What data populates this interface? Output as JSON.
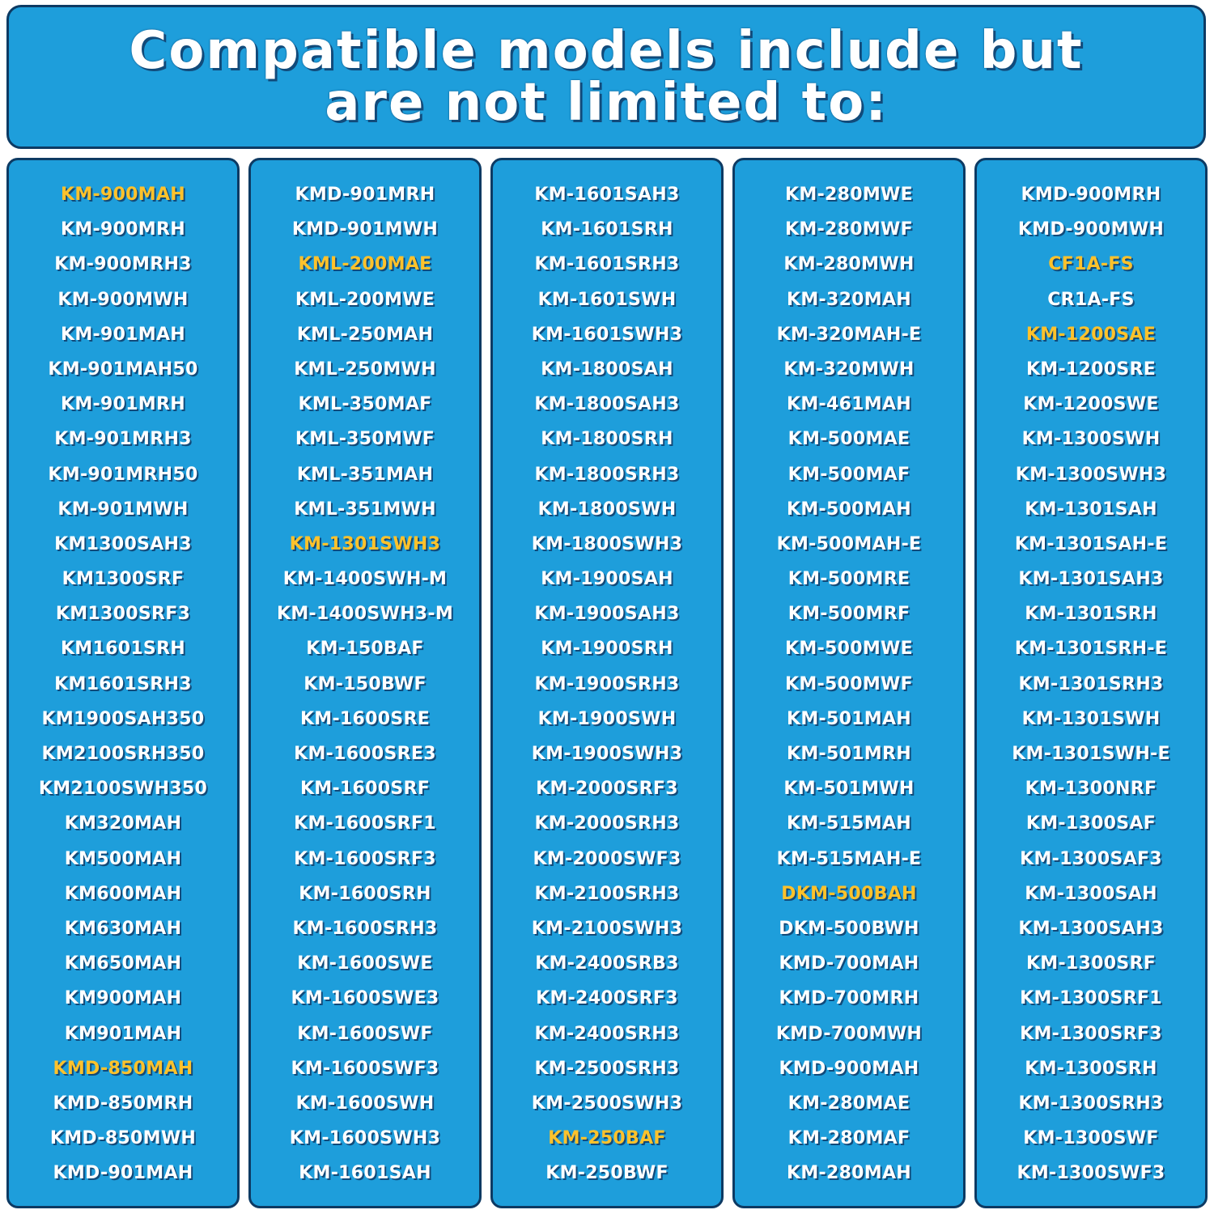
{
  "header": {
    "title_line1": "Compatible models include but",
    "title_line2": "are not limited to:"
  },
  "colors": {
    "panel": "#1e9edb",
    "border": "#0d3a63",
    "text": "#ffffff",
    "highlight": "#ffc22b"
  },
  "columns": [
    {
      "models": [
        "KM-900MAH",
        "KM-900MRH",
        "KM-900MRH3",
        "KM-900MWH",
        "KM-901MAH",
        "KM-901MAH50",
        "KM-901MRH",
        "KM-901MRH3",
        "KM-901MRH50",
        "KM-901MWH",
        "KM1300SAH3",
        "KM1300SRF",
        "KM1300SRF3",
        "KM1601SRH",
        "KM1601SRH3",
        "KM1900SAH350",
        "KM2100SRH350",
        "KM2100SWH350",
        "KM320MAH",
        "KM500MAH",
        "KM600MAH",
        "KM630MAH",
        "KM650MAH",
        "KM900MAH",
        "KM901MAH",
        "KMD-850MAH",
        "KMD-850MRH",
        "KMD-850MWH",
        "KMD-901MAH"
      ],
      "highlighted": [
        0,
        25
      ]
    },
    {
      "models": [
        "KMD-901MRH",
        "KMD-901MWH",
        "KML-200MAE",
        "KML-200MWE",
        "KML-250MAH",
        "KML-250MWH",
        "KML-350MAF",
        "KML-350MWF",
        "KML-351MAH",
        "KML-351MWH",
        "KM-1301SWH3",
        "KM-1400SWH-M",
        "KM-1400SWH3-M",
        "KM-150BAF",
        "KM-150BWF",
        "KM-1600SRE",
        "KM-1600SRE3",
        "KM-1600SRF",
        "KM-1600SRF1",
        "KM-1600SRF3",
        "KM-1600SRH",
        "KM-1600SRH3",
        "KM-1600SWE",
        "KM-1600SWE3",
        "KM-1600SWF",
        "KM-1600SWF3",
        "KM-1600SWH",
        "KM-1600SWH3",
        "KM-1601SAH"
      ],
      "highlighted": [
        2,
        10
      ]
    },
    {
      "models": [
        "KM-1601SAH3",
        "KM-1601SRH",
        "KM-1601SRH3",
        "KM-1601SWH",
        "KM-1601SWH3",
        "KM-1800SAH",
        "KM-1800SAH3",
        "KM-1800SRH",
        "KM-1800SRH3",
        "KM-1800SWH",
        "KM-1800SWH3",
        "KM-1900SAH",
        "KM-1900SAH3",
        "KM-1900SRH",
        "KM-1900SRH3",
        "KM-1900SWH",
        "KM-1900SWH3",
        "KM-2000SRF3",
        "KM-2000SRH3",
        "KM-2000SWF3",
        "KM-2100SRH3",
        "KM-2100SWH3",
        "KM-2400SRB3",
        "KM-2400SRF3",
        "KM-2400SRH3",
        "KM-2500SRH3",
        "KM-2500SWH3",
        "KM-250BAF",
        "KM-250BWF"
      ],
      "highlighted": [
        27
      ]
    },
    {
      "models": [
        "KM-280MWE",
        "KM-280MWF",
        "KM-280MWH",
        "KM-320MAH",
        "KM-320MAH-E",
        "KM-320MWH",
        "KM-461MAH",
        "KM-500MAE",
        "KM-500MAF",
        "KM-500MAH",
        "KM-500MAH-E",
        "KM-500MRE",
        "KM-500MRF",
        "KM-500MWE",
        "KM-500MWF",
        "KM-501MAH",
        "KM-501MRH",
        "KM-501MWH",
        "KM-515MAH",
        "KM-515MAH-E",
        "DKM-500BAH",
        "DKM-500BWH",
        "KMD-700MAH",
        "KMD-700MRH",
        "KMD-700MWH",
        "KMD-900MAH",
        "KM-280MAE",
        "KM-280MAF",
        "KM-280MAH"
      ],
      "highlighted": [
        20
      ]
    },
    {
      "models": [
        "KMD-900MRH",
        "KMD-900MWH",
        "CF1A-FS",
        "CR1A-FS",
        "KM-1200SAE",
        "KM-1200SRE",
        "KM-1200SWE",
        "KM-1300SWH",
        "KM-1300SWH3",
        "KM-1301SAH",
        "KM-1301SAH-E",
        "KM-1301SAH3",
        "KM-1301SRH",
        "KM-1301SRH-E",
        "KM-1301SRH3",
        "KM-1301SWH",
        "KM-1301SWH-E",
        "KM-1300NRF",
        "KM-1300SAF",
        "KM-1300SAF3",
        "KM-1300SAH",
        "KM-1300SAH3",
        "KM-1300SRF",
        "KM-1300SRF1",
        "KM-1300SRF3",
        "KM-1300SRH",
        "KM-1300SRH3",
        "KM-1300SWF",
        "KM-1300SWF3"
      ],
      "highlighted": [
        2,
        4
      ]
    }
  ]
}
